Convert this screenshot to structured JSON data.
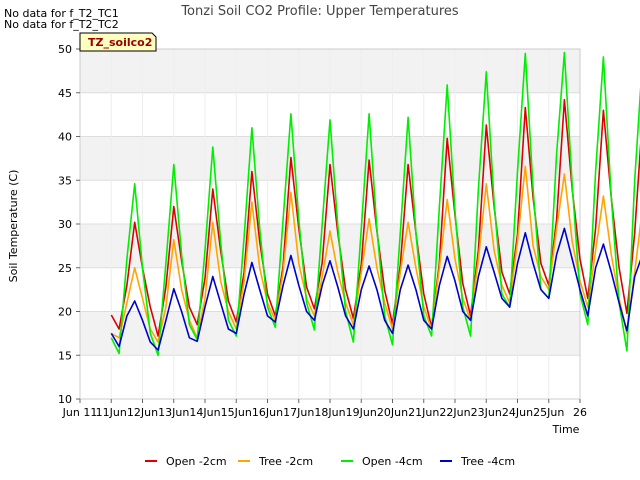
{
  "notes": [
    "No data for f_T2_TC1",
    "No data for f_T2_TC2"
  ],
  "chart_data": {
    "type": "line",
    "title": "Tonzi Soil CO2 Profile: Upper Temperatures",
    "xlabel": "Time",
    "ylabel": "Soil Temperature (C)",
    "ylim": [
      10,
      50
    ],
    "xlim": [
      10,
      26
    ],
    "yticks": [
      10,
      15,
      20,
      25,
      30,
      35,
      40,
      45,
      50
    ],
    "xticks": [
      10,
      11,
      12,
      13,
      14,
      15,
      16,
      17,
      18,
      19,
      20,
      21,
      22,
      23,
      24,
      25,
      26
    ],
    "xtick_labels": [
      "Jun 11",
      "11Jun",
      "12Jun",
      "13Jun",
      "14Jun",
      "15Jun",
      "16Jun",
      "17Jun",
      "18Jun",
      "19Jun",
      "20Jun",
      "21Jun",
      "22Jun",
      "23Jun",
      "24Jun",
      "25Jun",
      "26"
    ],
    "grid": true,
    "background_bands": true,
    "site_label": "TZ_soilco2",
    "legend_position": "bottom",
    "series": [
      {
        "name": "Open -2cm",
        "color": "#dd0000",
        "x_start": 11.0,
        "x_step": 0.25,
        "values": [
          19.6,
          18.0,
          23.0,
          30.2,
          25.0,
          20.5,
          17.2,
          22.8,
          32.0,
          25.8,
          20.5,
          18.5,
          23.8,
          34.0,
          27.0,
          21.2,
          18.8,
          24.5,
          36.0,
          28.0,
          22.0,
          19.5,
          25.2,
          37.6,
          29.5,
          22.8,
          20.3,
          25.6,
          36.8,
          29.0,
          22.5,
          19.2,
          25.4,
          37.3,
          29.2,
          22.4,
          18.6,
          25.3,
          36.8,
          29.0,
          22.0,
          18.2,
          25.6,
          39.8,
          31.0,
          23.2,
          19.5,
          27.0,
          41.3,
          32.0,
          24.5,
          22.0,
          28.8,
          43.3,
          33.0,
          25.5,
          23.0,
          30.5,
          44.2,
          34.0,
          26.0,
          21.5,
          29.5,
          43.0,
          33.0,
          25.0,
          19.8,
          29.0,
          42.2,
          23.3
        ]
      },
      {
        "name": "Tree -2cm",
        "color": "#ffa500",
        "x_start": 11.0,
        "x_step": 0.25,
        "values": [
          17.5,
          17.0,
          21.0,
          25.0,
          21.5,
          18.0,
          16.5,
          20.5,
          28.2,
          22.5,
          19.0,
          17.0,
          21.5,
          30.2,
          23.5,
          20.0,
          18.0,
          23.5,
          32.5,
          25.0,
          21.0,
          19.0,
          24.5,
          33.6,
          25.5,
          21.5,
          19.5,
          24.0,
          29.2,
          24.5,
          21.0,
          18.5,
          24.5,
          30.6,
          25.0,
          21.0,
          18.0,
          24.5,
          30.2,
          25.0,
          20.5,
          18.0,
          25.0,
          32.8,
          26.0,
          21.5,
          19.0,
          26.0,
          34.6,
          27.0,
          23.0,
          21.0,
          28.0,
          36.6,
          27.5,
          24.0,
          22.5,
          29.5,
          35.7,
          28.0,
          23.5,
          20.5,
          27.0,
          33.2,
          26.5,
          21.5,
          17.5,
          24.5,
          31.8,
          20.0
        ]
      },
      {
        "name": "Open -4cm",
        "color": "#00ee00",
        "x_start": 11.0,
        "x_step": 0.25,
        "values": [
          17.0,
          15.2,
          26.0,
          34.6,
          25.0,
          17.5,
          15.0,
          25.5,
          36.8,
          26.5,
          18.5,
          16.8,
          27.0,
          38.8,
          28.0,
          19.0,
          17.2,
          28.5,
          41.0,
          29.5,
          20.5,
          18.2,
          30.5,
          42.6,
          30.5,
          21.0,
          17.9,
          30.0,
          41.9,
          29.8,
          20.0,
          16.5,
          29.5,
          42.6,
          29.5,
          19.5,
          16.2,
          29.0,
          42.2,
          29.0,
          19.5,
          17.2,
          32.0,
          45.9,
          31.5,
          20.5,
          17.2,
          34.0,
          47.4,
          32.5,
          22.0,
          20.5,
          36.0,
          49.5,
          34.0,
          22.5,
          21.5,
          38.0,
          49.6,
          34.5,
          22.0,
          18.5,
          36.0,
          49.1,
          33.0,
          21.0,
          15.5,
          35.0,
          48.7,
          19.7
        ]
      },
      {
        "name": "Tree -4cm",
        "color": "#0000cc",
        "x_start": 11.0,
        "x_step": 0.25,
        "values": [
          17.5,
          16.0,
          19.5,
          21.2,
          19.0,
          16.5,
          15.6,
          19.0,
          22.6,
          20.0,
          17.0,
          16.6,
          20.5,
          24.0,
          21.0,
          18.0,
          17.5,
          22.0,
          25.6,
          22.5,
          19.5,
          18.8,
          23.0,
          26.4,
          23.0,
          20.0,
          19.0,
          23.0,
          25.8,
          22.8,
          19.5,
          18.0,
          22.5,
          25.2,
          22.5,
          19.0,
          17.5,
          22.5,
          25.3,
          22.5,
          19.0,
          18.0,
          23.0,
          26.3,
          23.5,
          20.0,
          19.0,
          24.0,
          27.4,
          24.5,
          21.5,
          20.5,
          25.5,
          29.0,
          25.5,
          22.5,
          21.5,
          26.5,
          29.5,
          26.0,
          22.5,
          19.5,
          25.0,
          27.7,
          24.5,
          21.0,
          17.8,
          24.0,
          26.5,
          20.5
        ]
      }
    ]
  }
}
